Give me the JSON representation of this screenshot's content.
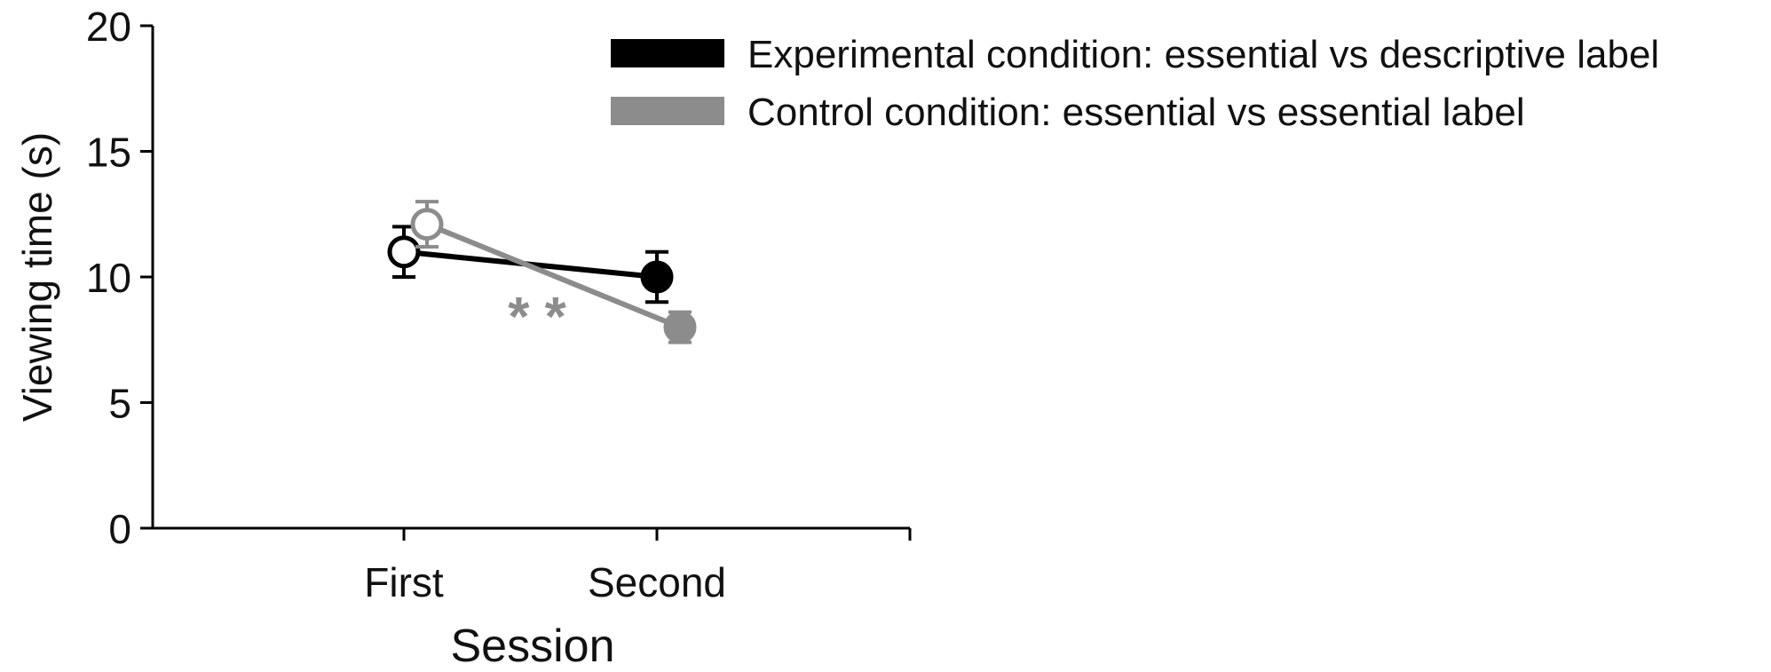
{
  "chart_data": {
    "type": "line",
    "title": "",
    "xlabel": "Session",
    "ylabel": "Viewing time (s)",
    "categories": [
      "First",
      "Second"
    ],
    "ylim": [
      0,
      20
    ],
    "yticks": [
      "0",
      "5",
      "10",
      "15",
      "20"
    ],
    "grid": false,
    "legend_position": "top-right",
    "series": [
      {
        "name": "Experimental condition: essential vs descriptive label",
        "color": "#000000",
        "values": [
          11,
          10
        ],
        "errors": [
          1.0,
          1.0
        ],
        "marker_fill": [
          "hollow",
          "filled"
        ]
      },
      {
        "name": "Control condition: essential vs essential label",
        "color": "#8c8c8c",
        "values": [
          12.1,
          8.0
        ],
        "errors": [
          0.9,
          0.6
        ],
        "marker_fill": [
          "hollow",
          "filled"
        ]
      }
    ],
    "annotations": [
      {
        "text": "* *",
        "color": "#8c8c8c"
      }
    ]
  }
}
